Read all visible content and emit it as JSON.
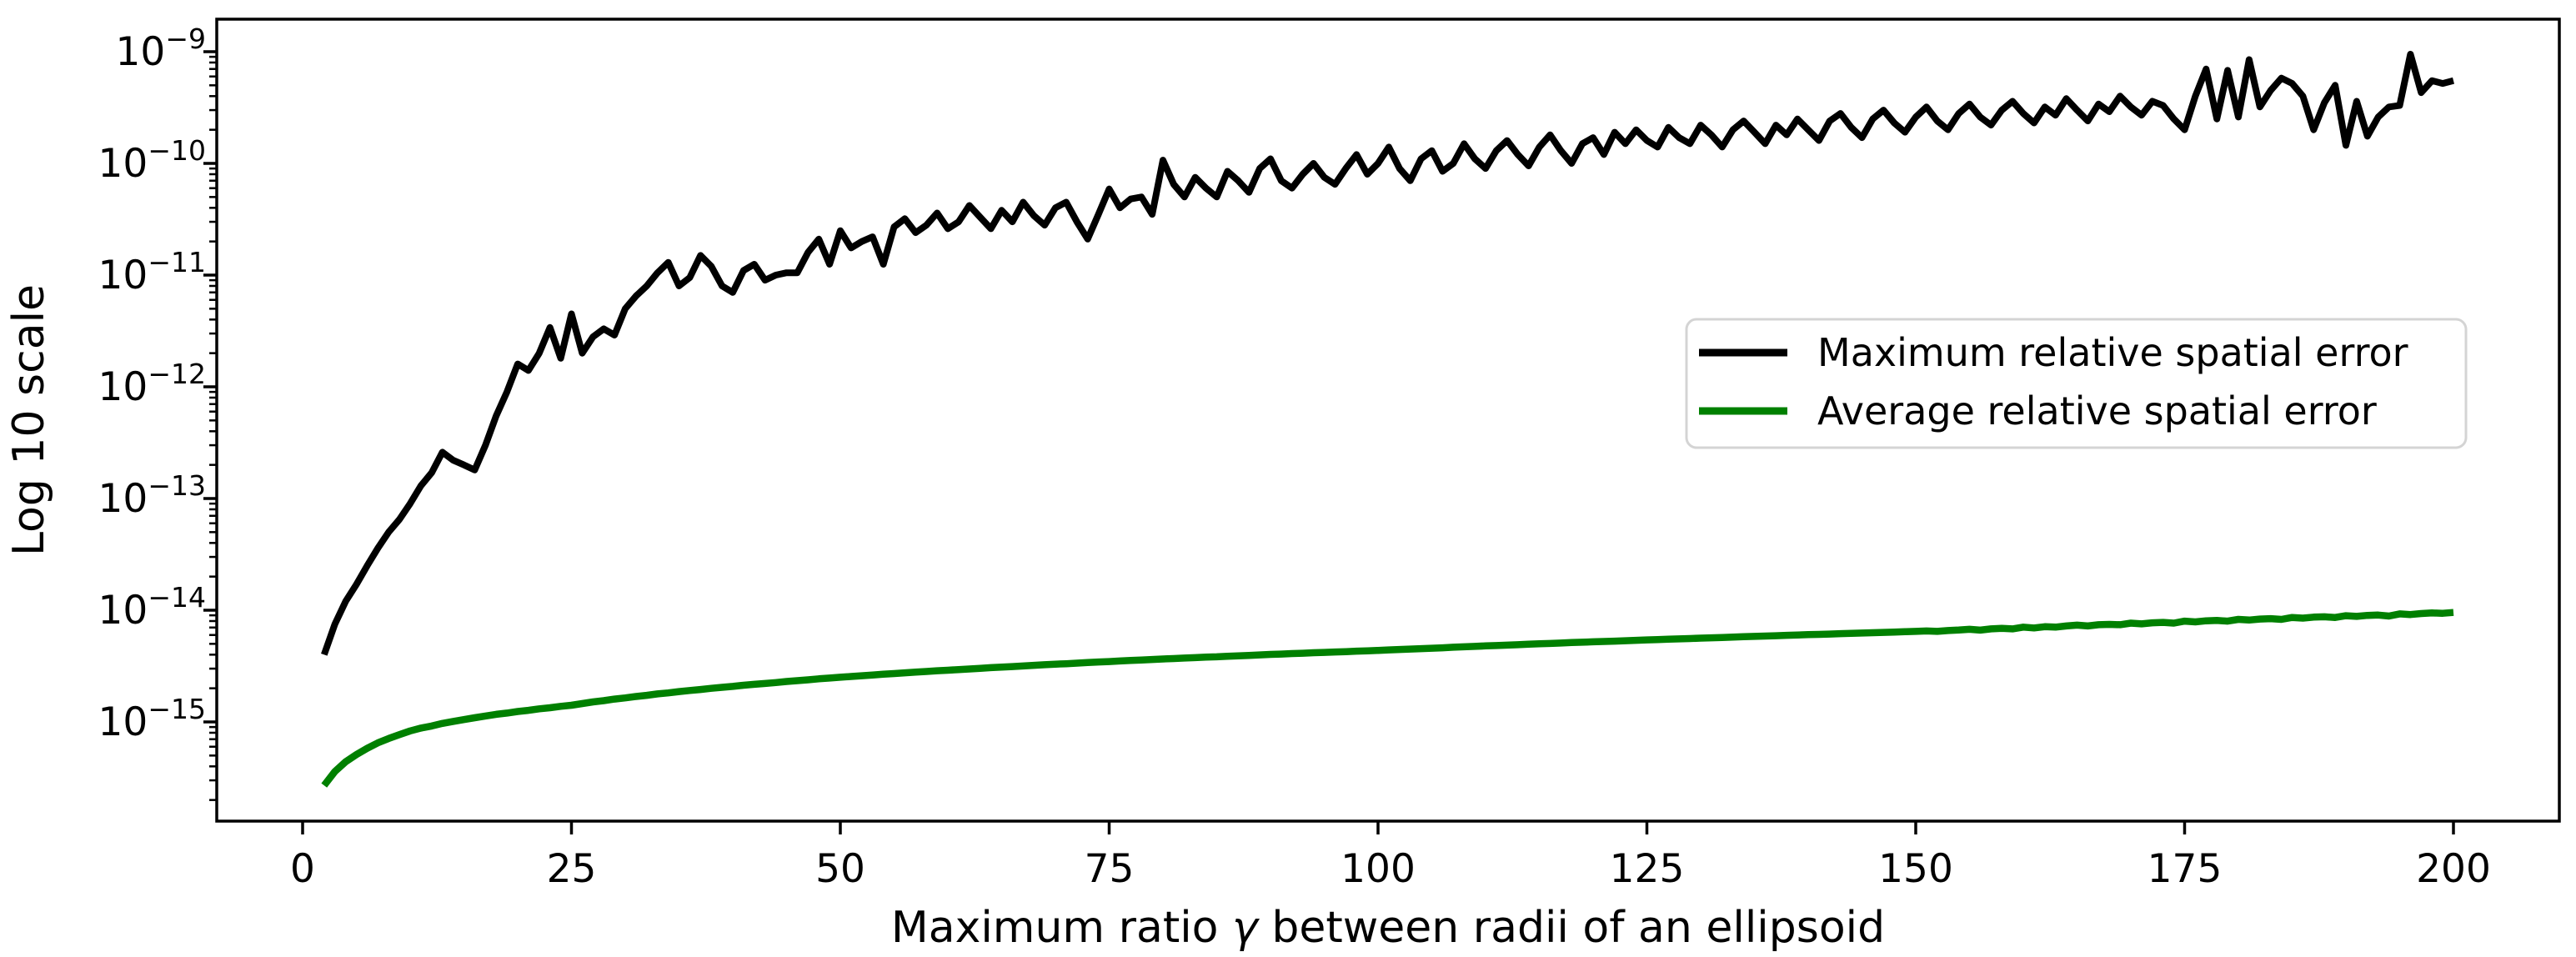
{
  "figure": {
    "background": "#ffffff"
  },
  "axes": {
    "ylabel": "Log 10 scale",
    "xlabel": "Maximum ratio γ between radii of an ellipsoid",
    "x_tick_labels": [
      "0",
      "25",
      "50",
      "75",
      "100",
      "125",
      "150",
      "175",
      "200"
    ],
    "x_ticks": [
      0,
      25,
      50,
      75,
      100,
      125,
      150,
      175,
      200
    ],
    "y_tick_exponents": [
      -9,
      -10,
      -11,
      -12,
      -13,
      -14,
      -15
    ]
  },
  "legend": {
    "entries": [
      {
        "label": "Maximum relative spatial error",
        "color": "#000000"
      },
      {
        "label": "Average relative spatial error",
        "color": "#008000"
      }
    ],
    "border_color": "#d4d4d4",
    "fill_color": "#ffffff"
  },
  "chart_data": {
    "type": "line",
    "title": "",
    "xlabel": "Maximum ratio γ between radii of an ellipsoid",
    "ylabel": "Log 10 scale",
    "yscale": "log",
    "grid": false,
    "legend_position": "center right",
    "xlim": [
      -8,
      210
    ],
    "ylim": [
      1.3e-16,
      2e-09
    ],
    "x_start": 2,
    "x_step": 1,
    "x_end": 200,
    "series": [
      {
        "name": "Maximum relative spatial error",
        "color": "#000000",
        "values": [
          4e-15,
          7.5e-15,
          1.2e-14,
          1.7e-14,
          2.5e-14,
          3.6e-14,
          5e-14,
          6.5e-14,
          9e-14,
          1.3e-13,
          1.7e-13,
          2.6e-13,
          2.2e-13,
          2e-13,
          1.8e-13,
          3e-13,
          5.5e-13,
          9e-13,
          1.6e-12,
          1.4e-12,
          2e-12,
          3.4e-12,
          1.8e-12,
          4.5e-12,
          2e-12,
          2.8e-12,
          3.3e-12,
          2.9e-12,
          5e-12,
          6.5e-12,
          8e-12,
          1.05e-11,
          1.3e-11,
          8e-12,
          9.5e-12,
          1.5e-11,
          1.2e-11,
          8e-12,
          7e-12,
          1.1e-11,
          1.25e-11,
          9e-12,
          1e-11,
          1.05e-11,
          1.05e-11,
          1.6e-11,
          2.1e-11,
          1.25e-11,
          2.5e-11,
          1.75e-11,
          2e-11,
          2.2e-11,
          1.25e-11,
          2.7e-11,
          3.2e-11,
          2.4e-11,
          2.8e-11,
          3.6e-11,
          2.6e-11,
          3e-11,
          4.2e-11,
          3.3e-11,
          2.6e-11,
          3.8e-11,
          3e-11,
          4.5e-11,
          3.4e-11,
          2.8e-11,
          4e-11,
          4.5e-11,
          3e-11,
          2.1e-11,
          3.5e-11,
          5.9e-11,
          4e-11,
          4.8e-11,
          5e-11,
          3.5e-11,
          1.07e-10,
          6.5e-11,
          5e-11,
          7.5e-11,
          6e-11,
          5e-11,
          8.5e-11,
          7e-11,
          5.5e-11,
          9e-11,
          1.1e-10,
          7e-11,
          6e-11,
          8e-11,
          1e-10,
          7.5e-11,
          6.5e-11,
          9e-11,
          1.2e-10,
          8e-11,
          1e-10,
          1.4e-10,
          9e-11,
          7e-11,
          1.1e-10,
          1.3e-10,
          8.5e-11,
          1e-10,
          1.5e-10,
          1.1e-10,
          9e-11,
          1.3e-10,
          1.6e-10,
          1.2e-10,
          9.5e-11,
          1.4e-10,
          1.8e-10,
          1.3e-10,
          1e-10,
          1.5e-10,
          1.7e-10,
          1.2e-10,
          1.9e-10,
          1.5e-10,
          2e-10,
          1.6e-10,
          1.4e-10,
          2.1e-10,
          1.7e-10,
          1.5e-10,
          2.2e-10,
          1.8e-10,
          1.4e-10,
          2e-10,
          2.4e-10,
          1.9e-10,
          1.5e-10,
          2.2e-10,
          1.8e-10,
          2.5e-10,
          2e-10,
          1.6e-10,
          2.4e-10,
          2.8e-10,
          2.1e-10,
          1.7e-10,
          2.5e-10,
          3e-10,
          2.3e-10,
          1.9e-10,
          2.6e-10,
          3.2e-10,
          2.4e-10,
          2e-10,
          2.8e-10,
          3.4e-10,
          2.6e-10,
          2.2e-10,
          3e-10,
          3.6e-10,
          2.8e-10,
          2.3e-10,
          3.2e-10,
          2.7e-10,
          3.8e-10,
          3e-10,
          2.4e-10,
          3.4e-10,
          2.9e-10,
          4e-10,
          3.2e-10,
          2.7e-10,
          3.6e-10,
          3.3e-10,
          2.5e-10,
          2e-10,
          4e-10,
          7e-10,
          2.5e-10,
          6.8e-10,
          2.6e-10,
          8.5e-10,
          3.2e-10,
          4.5e-10,
          5.8e-10,
          5.2e-10,
          4e-10,
          2e-10,
          3.5e-10,
          5e-10,
          1.45e-10,
          3.6e-10,
          1.75e-10,
          2.6e-10,
          3.2e-10,
          3.3e-10,
          9.5e-10,
          4.3e-10,
          5.5e-10,
          5.2e-10,
          5.5e-10
        ]
      },
      {
        "name": "Average relative spatial error",
        "color": "#008000",
        "values": [
          2.7e-16,
          3.6e-16,
          4.4e-16,
          5.1e-16,
          5.8e-16,
          6.5e-16,
          7.1e-16,
          7.7e-16,
          8.3e-16,
          8.8e-16,
          9.2e-16,
          9.7e-16,
          1.01e-15,
          1.05e-15,
          1.09e-15,
          1.13e-15,
          1.17e-15,
          1.2e-15,
          1.24e-15,
          1.27e-15,
          1.31e-15,
          1.34e-15,
          1.38e-15,
          1.41e-15,
          1.46e-15,
          1.51e-15,
          1.55e-15,
          1.6e-15,
          1.64e-15,
          1.69e-15,
          1.73e-15,
          1.78e-15,
          1.82e-15,
          1.87e-15,
          1.91e-15,
          1.95e-15,
          2e-15,
          2.04e-15,
          2.08e-15,
          2.13e-15,
          2.17e-15,
          2.21e-15,
          2.25e-15,
          2.3e-15,
          2.34e-15,
          2.38e-15,
          2.43e-15,
          2.47e-15,
          2.51e-15,
          2.55e-15,
          2.59e-15,
          2.63e-15,
          2.67e-15,
          2.71e-15,
          2.75e-15,
          2.79e-15,
          2.83e-15,
          2.87e-15,
          2.9e-15,
          2.94e-15,
          2.98e-15,
          3.02e-15,
          3.06e-15,
          3.09e-15,
          3.13e-15,
          3.17e-15,
          3.21e-15,
          3.25e-15,
          3.29e-15,
          3.32e-15,
          3.36e-15,
          3.4e-15,
          3.44e-15,
          3.47e-15,
          3.51e-15,
          3.55e-15,
          3.58e-15,
          3.62e-15,
          3.66e-15,
          3.69e-15,
          3.73e-15,
          3.76e-15,
          3.8e-15,
          3.83e-15,
          3.87e-15,
          3.9e-15,
          3.94e-15,
          3.98e-15,
          4.02e-15,
          4.05e-15,
          4.09e-15,
          4.12e-15,
          4.16e-15,
          4.19e-15,
          4.23e-15,
          4.26e-15,
          4.3e-15,
          4.33e-15,
          4.37e-15,
          4.41e-15,
          4.45e-15,
          4.49e-15,
          4.53e-15,
          4.57e-15,
          4.61e-15,
          4.66e-15,
          4.7e-15,
          4.74e-15,
          4.79e-15,
          4.83e-15,
          4.87e-15,
          4.91e-15,
          4.96e-15,
          5e-15,
          5.04e-15,
          5.08e-15,
          5.13e-15,
          5.17e-15,
          5.21e-15,
          5.25e-15,
          5.29e-15,
          5.33e-15,
          5.38e-15,
          5.42e-15,
          5.46e-15,
          5.5e-15,
          5.54e-15,
          5.58e-15,
          5.62e-15,
          5.66e-15,
          5.7e-15,
          5.75e-15,
          5.79e-15,
          5.83e-15,
          5.87e-15,
          5.91e-15,
          5.96e-15,
          6e-15,
          6.04e-15,
          6.08e-15,
          6.12e-15,
          6.17e-15,
          6.21e-15,
          6.25e-15,
          6.29e-15,
          6.33e-15,
          6.38e-15,
          6.42e-15,
          6.46e-15,
          6.52e-15,
          6.46e-15,
          6.58e-15,
          6.64e-15,
          6.75e-15,
          6.63e-15,
          6.81e-15,
          6.87e-15,
          6.81e-15,
          7.05e-15,
          6.93e-15,
          7.11e-15,
          7.05e-15,
          7.23e-15,
          7.35e-15,
          7.23e-15,
          7.41e-15,
          7.47e-15,
          7.41e-15,
          7.66e-15,
          7.54e-15,
          7.72e-15,
          7.78e-15,
          7.66e-15,
          7.98e-15,
          7.86e-15,
          8.04e-15,
          8.1e-15,
          7.98e-15,
          8.28e-15,
          8.16e-15,
          8.34e-15,
          8.4e-15,
          8.28e-15,
          8.61e-15,
          8.49e-15,
          8.67e-15,
          8.73e-15,
          8.61e-15,
          8.93e-15,
          8.81e-15,
          8.99e-15,
          9.05e-15,
          8.87e-15,
          9.27e-15,
          9.15e-15,
          9.33e-15,
          9.45e-15,
          9.39e-15,
          9.55e-15
        ]
      }
    ]
  }
}
